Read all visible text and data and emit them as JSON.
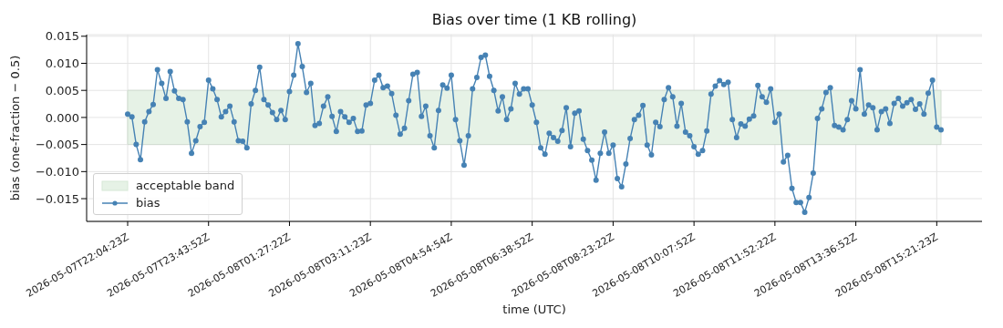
{
  "chart_data": {
    "type": "line",
    "title": "Bias over time (1 KB rolling)",
    "xlabel": "time (UTC)",
    "ylabel": "bias (one-fraction − 0.5)",
    "categories": [
      "2026-05-07T22:04:23Z",
      null,
      null,
      null,
      null,
      null,
      null,
      null,
      null,
      null,
      null,
      null,
      null,
      null,
      null,
      null,
      null,
      null,
      null,
      "2026-05-07T23:43:52Z",
      null,
      null,
      null,
      null,
      null,
      null,
      null,
      null,
      null,
      null,
      null,
      null,
      null,
      null,
      null,
      null,
      null,
      null,
      "2026-05-08T01:27:22Z",
      null,
      null,
      null,
      null,
      null,
      null,
      null,
      null,
      null,
      null,
      null,
      null,
      null,
      null,
      null,
      null,
      null,
      null,
      "2026-05-08T03:11:23Z",
      null,
      null,
      null,
      null,
      null,
      null,
      null,
      null,
      null,
      null,
      null,
      null,
      null,
      null,
      null,
      null,
      null,
      null,
      "2026-05-08T04:54:54Z",
      null,
      null,
      null,
      null,
      null,
      null,
      null,
      null,
      null,
      null,
      null,
      null,
      null,
      null,
      null,
      null,
      null,
      null,
      "2026-05-08T06:38:52Z",
      null,
      null,
      null,
      null,
      null,
      null,
      null,
      null,
      null,
      null,
      null,
      null,
      null,
      null,
      null,
      null,
      null,
      null,
      "2026-05-08T08:23:22Z",
      null,
      null,
      null,
      null,
      null,
      null,
      null,
      null,
      null,
      null,
      null,
      null,
      null,
      null,
      null,
      null,
      null,
      null,
      "2026-05-08T10:07:52Z",
      null,
      null,
      null,
      null,
      null,
      null,
      null,
      null,
      null,
      null,
      null,
      null,
      null,
      null,
      null,
      null,
      null,
      null,
      "2026-05-08T11:52:22Z",
      null,
      null,
      null,
      null,
      null,
      null,
      null,
      null,
      null,
      null,
      null,
      null,
      null,
      null,
      null,
      null,
      null,
      null,
      "2026-05-08T13:36:52Z",
      null,
      null,
      null,
      null,
      null,
      null,
      null,
      null,
      null,
      null,
      null,
      null,
      null,
      null,
      null,
      null,
      null,
      null,
      "2026-05-08T15:21:23Z",
      null
    ],
    "series": [
      {
        "name": "bias",
        "color": "#4682b4",
        "values": [
          0.0006,
          0.0001,
          -0.005,
          -0.0078,
          -0.0008,
          0.0011,
          0.0024,
          0.0088,
          0.0063,
          0.0035,
          0.0085,
          0.0049,
          0.0035,
          0.0033,
          -0.0008,
          -0.0066,
          -0.0043,
          -0.0017,
          -0.0009,
          0.0069,
          0.0053,
          0.0033,
          0.0001,
          0.0011,
          0.0021,
          -0.0008,
          -0.0043,
          -0.0044,
          -0.0056,
          0.0025,
          0.005,
          0.0093,
          0.0033,
          0.0023,
          0.0009,
          -0.0004,
          0.0013,
          -0.0004,
          0.0048,
          0.0078,
          0.0136,
          0.0094,
          0.0046,
          0.0063,
          -0.0015,
          -0.0011,
          0.0021,
          0.0038,
          0.0002,
          -0.0026,
          0.0011,
          0.0001,
          -0.0009,
          -0.0002,
          -0.0026,
          -0.0025,
          0.0023,
          0.0026,
          0.0069,
          0.0078,
          0.0055,
          0.0058,
          0.0044,
          0.0004,
          -0.0031,
          -0.002,
          0.0031,
          0.008,
          0.0083,
          0.0002,
          0.0021,
          -0.0034,
          -0.0056,
          0.0013,
          0.006,
          0.0054,
          0.0078,
          -0.0004,
          -0.0043,
          -0.0088,
          -0.0034,
          0.0053,
          0.0074,
          0.0111,
          0.0115,
          0.0076,
          0.005,
          0.0012,
          0.0038,
          -0.0004,
          0.0016,
          0.0063,
          0.0043,
          0.0053,
          0.0053,
          0.0023,
          -0.0009,
          -0.0056,
          -0.0068,
          -0.0029,
          -0.0037,
          -0.0044,
          -0.0024,
          0.0018,
          -0.0054,
          0.0008,
          0.0012,
          -0.004,
          -0.0061,
          -0.0079,
          -0.0116,
          -0.0066,
          -0.0027,
          -0.0066,
          -0.0051,
          -0.0113,
          -0.0128,
          -0.0086,
          -0.0039,
          -0.0004,
          0.0004,
          0.0022,
          -0.0051,
          -0.0069,
          -0.0009,
          -0.0017,
          0.0033,
          0.0055,
          0.0038,
          -0.0016,
          0.0026,
          -0.0027,
          -0.0034,
          -0.0054,
          -0.0068,
          -0.0061,
          -0.0025,
          0.0043,
          0.0058,
          0.0068,
          0.0061,
          0.0065,
          -0.0004,
          -0.0037,
          -0.0012,
          -0.0016,
          -0.0003,
          0.0003,
          0.0059,
          0.0038,
          0.0028,
          0.0053,
          -0.0009,
          0.0006,
          -0.0082,
          -0.007,
          -0.0131,
          -0.0157,
          -0.0157,
          -0.0175,
          -0.0148,
          -0.0103,
          -0.0002,
          0.0016,
          0.0046,
          0.0055,
          -0.0015,
          -0.0018,
          -0.0023,
          -0.0004,
          0.0031,
          0.0016,
          0.0088,
          0.0006,
          0.0023,
          0.0018,
          -0.0023,
          0.0011,
          0.0016,
          -0.0011,
          0.0026,
          0.0035,
          0.0021,
          0.0027,
          0.0033,
          0.0015,
          0.0025,
          0.0006,
          0.0045,
          0.0069,
          -0.0018,
          -0.0023
        ]
      }
    ],
    "bands": [
      {
        "axis": "y",
        "from": -0.005,
        "to": 0.005,
        "label": "acceptable band",
        "color": "#e6f2e6"
      }
    ],
    "ylim": [
      -0.0192,
      0.0153
    ],
    "yticks": [
      {
        "value": -0.015,
        "label": "−0.015"
      },
      {
        "value": -0.01,
        "label": "−0.010"
      },
      {
        "value": -0.005,
        "label": "−0.005"
      },
      {
        "value": 0,
        "label": "0.000"
      },
      {
        "value": 0.005,
        "label": "0.005"
      },
      {
        "value": 0.01,
        "label": "0.010"
      },
      {
        "value": 0.015,
        "label": "0.015"
      }
    ],
    "grid": true,
    "legend": "bottom left",
    "marker": "circle",
    "line_style": "solid"
  }
}
